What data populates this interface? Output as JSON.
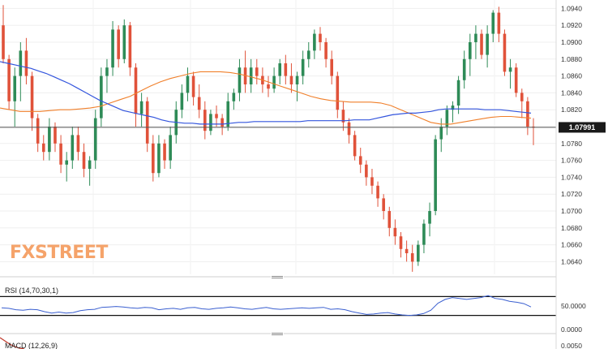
{
  "price_axis": {
    "ticks": [
      "1.0940",
      "1.0920",
      "1.0900",
      "1.0880",
      "1.0860",
      "1.0840",
      "1.0820",
      "1.0800",
      "1.0780",
      "1.0760",
      "1.0740",
      "1.0720",
      "1.0700",
      "1.0680",
      "1.0660",
      "1.0640"
    ],
    "current_price_label": "1.07991"
  },
  "watermark": {
    "part1": "FX",
    "part2": "STREET"
  },
  "rsi": {
    "label": "RSI (14,70,30,1)",
    "ticks": [
      "50.0000",
      "0.0000"
    ]
  },
  "macd": {
    "label": "MACD (12,26,9)",
    "tick": "0.0050"
  },
  "colors": {
    "bull": "#2e8b57",
    "bear": "#e0523a",
    "ma_fast": "#f07f2a",
    "ma_slow": "#3355dd",
    "rsi_line": "#3a5fd0",
    "price_line": "#555555",
    "watermark": "#f5a36a"
  },
  "chart_data": {
    "type": "candlestick",
    "ylim": [
      1.0625,
      1.095
    ],
    "candles": [
      [
        1.092,
        1.0944,
        1.0875,
        1.088
      ],
      [
        1.088,
        1.0885,
        1.082,
        1.083
      ],
      [
        1.083,
        1.087,
        1.08,
        1.086
      ],
      [
        1.086,
        1.09,
        1.083,
        1.089
      ],
      [
        1.089,
        1.0905,
        1.085,
        1.086
      ],
      [
        1.086,
        1.0865,
        1.0795,
        1.081
      ],
      [
        1.081,
        1.0815,
        1.077,
        1.078
      ],
      [
        1.078,
        1.079,
        1.076,
        1.077
      ],
      [
        1.077,
        1.081,
        1.076,
        1.08
      ],
      [
        1.08,
        1.0805,
        1.077,
        1.078
      ],
      [
        1.078,
        1.079,
        1.0745,
        1.0755
      ],
      [
        1.0755,
        1.077,
        1.0735,
        1.076
      ],
      [
        1.076,
        1.08,
        1.075,
        1.079
      ],
      [
        1.079,
        1.08,
        1.076,
        1.077
      ],
      [
        1.077,
        1.078,
        1.074,
        1.075
      ],
      [
        1.075,
        1.0765,
        1.073,
        1.076
      ],
      [
        1.076,
        1.082,
        1.075,
        1.081
      ],
      [
        1.081,
        1.087,
        1.08,
        1.086
      ],
      [
        1.086,
        1.088,
        1.084,
        1.087
      ],
      [
        1.087,
        1.0925,
        1.086,
        1.0915
      ],
      [
        1.0915,
        1.092,
        1.087,
        1.088
      ],
      [
        1.088,
        1.0927,
        1.0875,
        1.092
      ],
      [
        1.092,
        1.0924,
        1.086,
        1.087
      ],
      [
        1.087,
        1.0875,
        1.08,
        1.0815
      ],
      [
        1.0815,
        1.084,
        1.08,
        1.083
      ],
      [
        1.083,
        1.0835,
        1.077,
        1.078
      ],
      [
        1.078,
        1.079,
        1.0735,
        1.0745
      ],
      [
        1.0745,
        1.079,
        1.074,
        1.078
      ],
      [
        1.078,
        1.0785,
        1.075,
        1.076
      ],
      [
        1.076,
        1.08,
        1.075,
        1.079
      ],
      [
        1.079,
        1.083,
        1.078,
        1.082
      ],
      [
        1.082,
        1.085,
        1.081,
        1.084
      ],
      [
        1.084,
        1.087,
        1.083,
        1.086
      ],
      [
        1.086,
        1.0865,
        1.0825,
        1.0835
      ],
      [
        1.0835,
        1.085,
        1.081,
        1.082
      ],
      [
        1.082,
        1.083,
        1.0785,
        1.0795
      ],
      [
        1.0795,
        1.082,
        1.079,
        1.0815
      ],
      [
        1.0815,
        1.0825,
        1.08,
        1.081
      ],
      [
        1.081,
        1.0815,
        1.079,
        1.08
      ],
      [
        1.08,
        1.084,
        1.0795,
        1.083
      ],
      [
        1.083,
        1.0845,
        1.082,
        1.084
      ],
      [
        1.084,
        1.088,
        1.083,
        1.087
      ],
      [
        1.087,
        1.089,
        1.084,
        1.085
      ],
      [
        1.085,
        1.088,
        1.084,
        1.087
      ],
      [
        1.087,
        1.088,
        1.085,
        1.086
      ],
      [
        1.086,
        1.087,
        1.084,
        1.085
      ],
      [
        1.085,
        1.086,
        1.0835,
        1.0845
      ],
      [
        1.0845,
        1.087,
        1.084,
        1.086
      ],
      [
        1.086,
        1.088,
        1.085,
        1.0875
      ],
      [
        1.0875,
        1.0885,
        1.085,
        1.086
      ],
      [
        1.086,
        1.0875,
        1.084,
        1.085
      ],
      [
        1.085,
        1.0865,
        1.083,
        1.086
      ],
      [
        1.086,
        1.089,
        1.085,
        1.088
      ],
      [
        1.088,
        1.09,
        1.087,
        1.089
      ],
      [
        1.089,
        1.0915,
        1.088,
        1.091
      ],
      [
        1.091,
        1.0918,
        1.089,
        1.09
      ],
      [
        1.09,
        1.0905,
        1.087,
        1.088
      ],
      [
        1.088,
        1.089,
        1.085,
        1.086
      ],
      [
        1.086,
        1.0865,
        1.081,
        1.082
      ],
      [
        1.082,
        1.083,
        1.0795,
        1.0805
      ],
      [
        1.0805,
        1.081,
        1.078,
        1.079
      ],
      [
        1.079,
        1.0795,
        1.076,
        1.0765
      ],
      [
        1.0765,
        1.0775,
        1.0745,
        1.0755
      ],
      [
        1.0755,
        1.076,
        1.073,
        1.074
      ],
      [
        1.074,
        1.075,
        1.072,
        1.073
      ],
      [
        1.073,
        1.0735,
        1.0705,
        1.0715
      ],
      [
        1.0715,
        1.072,
        1.069,
        1.07
      ],
      [
        1.07,
        1.0705,
        1.067,
        1.068
      ],
      [
        1.068,
        1.069,
        1.066,
        1.067
      ],
      [
        1.067,
        1.0675,
        1.0645,
        1.0655
      ],
      [
        1.0655,
        1.0665,
        1.064,
        1.065
      ],
      [
        1.065,
        1.066,
        1.0628,
        1.064
      ],
      [
        1.064,
        1.0665,
        1.0635,
        1.066
      ],
      [
        1.066,
        1.069,
        1.065,
        1.0685
      ],
      [
        1.0685,
        1.071,
        1.067,
        1.07
      ],
      [
        1.07,
        1.079,
        1.0695,
        1.0785
      ],
      [
        1.0785,
        1.081,
        1.077,
        1.08
      ],
      [
        1.08,
        1.0825,
        1.079,
        1.082
      ],
      [
        1.082,
        1.083,
        1.0805,
        1.0825
      ],
      [
        1.0825,
        1.086,
        1.0815,
        1.0855
      ],
      [
        1.0855,
        1.089,
        1.0845,
        1.088
      ],
      [
        1.088,
        1.091,
        1.086,
        1.09
      ],
      [
        1.09,
        1.092,
        1.088,
        1.091
      ],
      [
        1.091,
        1.0915,
        1.088,
        1.0885
      ],
      [
        1.0885,
        1.092,
        1.087,
        1.091
      ],
      [
        1.091,
        1.0938,
        1.09,
        1.0935
      ],
      [
        1.0935,
        1.0942,
        1.09,
        1.091
      ],
      [
        1.091,
        1.0915,
        1.086,
        1.0865
      ],
      [
        1.0865,
        1.088,
        1.0845,
        1.087
      ],
      [
        1.087,
        1.0875,
        1.0835,
        1.084
      ],
      [
        1.084,
        1.0845,
        1.081,
        1.083
      ],
      [
        1.083,
        1.0835,
        1.079,
        1.08
      ],
      [
        1.08,
        1.081,
        1.0778,
        1.0799
      ]
    ],
    "ma_fast": [
      1.0822,
      1.082,
      1.0818,
      1.0818,
      1.0818,
      1.0819,
      1.082,
      1.082,
      1.0821,
      1.0822,
      1.0824,
      1.0828,
      1.0832,
      1.0836,
      1.0842,
      1.0848,
      1.0853,
      1.0857,
      1.086,
      1.0863,
      1.0865,
      1.0865,
      1.0865,
      1.0864,
      1.0862,
      1.0859,
      1.0856,
      1.0852,
      1.0848,
      1.0844,
      1.084,
      1.0836,
      1.0833,
      1.0831,
      1.083,
      1.0829,
      1.0829,
      1.0829,
      1.0828,
      1.0825,
      1.082,
      1.0815,
      1.081,
      1.0805,
      1.0803,
      1.0803,
      1.0805,
      1.0807,
      1.0809,
      1.0811,
      1.0812,
      1.0812,
      1.0811,
      1.081
    ],
    "ma_slow": [
      1.0877,
      1.0875,
      1.0873,
      1.0871,
      1.0869,
      1.0866,
      1.0863,
      1.0859,
      1.0855,
      1.0851,
      1.0846,
      1.0841,
      1.0836,
      1.0831,
      1.0827,
      1.0823,
      1.0819,
      1.0817,
      1.0815,
      1.0813,
      1.0811,
      1.0808,
      1.0806,
      1.0805,
      1.0804,
      1.0804,
      1.0803,
      1.0803,
      1.0803,
      1.0803,
      1.0804,
      1.0805,
      1.0805,
      1.0806,
      1.0806,
      1.0806,
      1.0806,
      1.0806,
      1.0806,
      1.0806,
      1.0807,
      1.0807,
      1.0807,
      1.0807,
      1.0807,
      1.0807,
      1.0808,
      1.0808,
      1.0808,
      1.081,
      1.0812,
      1.0814,
      1.0815,
      1.0816,
      1.0816,
      1.0817,
      1.0818,
      1.082,
      1.0821,
      1.0821,
      1.0821,
      1.0821,
      1.0821,
      1.082,
      1.082,
      1.082,
      1.0819,
      1.0818,
      1.0817,
      1.0816
    ],
    "rsi_ylim": [
      0,
      100
    ],
    "rsi_levels": [
      70,
      30
    ],
    "rsi": [
      46,
      45,
      42,
      41,
      43,
      42,
      38,
      35,
      37,
      35,
      36,
      40,
      42,
      43,
      47,
      48,
      49,
      48,
      46,
      45,
      47,
      46,
      42,
      44,
      45,
      43,
      46,
      47,
      44,
      43,
      45,
      46,
      48,
      46,
      44,
      43,
      45,
      47,
      44,
      43,
      44,
      45,
      46,
      45,
      46,
      47,
      43,
      44,
      42,
      38,
      35,
      32,
      33,
      35,
      36,
      33,
      31,
      30,
      31,
      34,
      41,
      56,
      64,
      68,
      66,
      64,
      66,
      68,
      72,
      66,
      64,
      60,
      58,
      55,
      48
    ]
  }
}
